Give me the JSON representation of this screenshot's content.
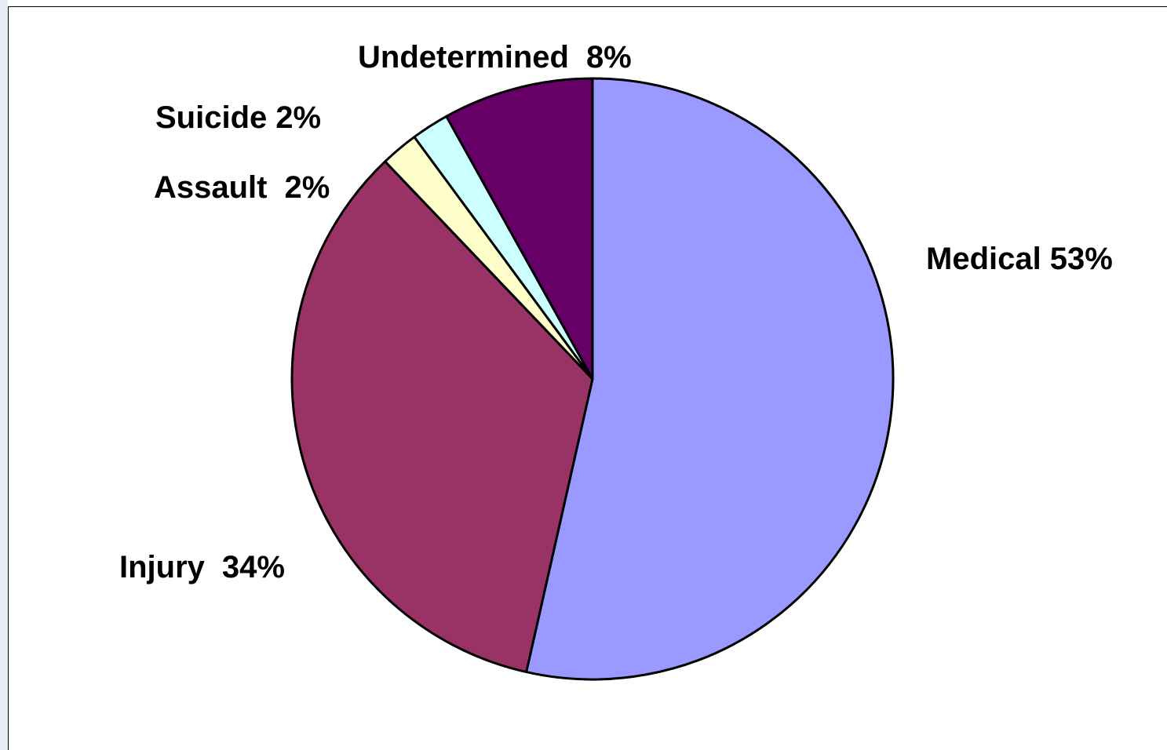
{
  "chart_data": {
    "type": "pie",
    "categories": [
      "Medical",
      "Injury",
      "Assault",
      "Suicide",
      "Undetermined"
    ],
    "values": [
      53,
      34,
      2,
      2,
      8
    ],
    "value_labels": [
      "53%",
      "34%",
      "2%",
      "2%",
      "8%"
    ],
    "colors": [
      "#9999ff",
      "#993366",
      "#ffffcc",
      "#ccffff",
      "#660066"
    ]
  }
}
